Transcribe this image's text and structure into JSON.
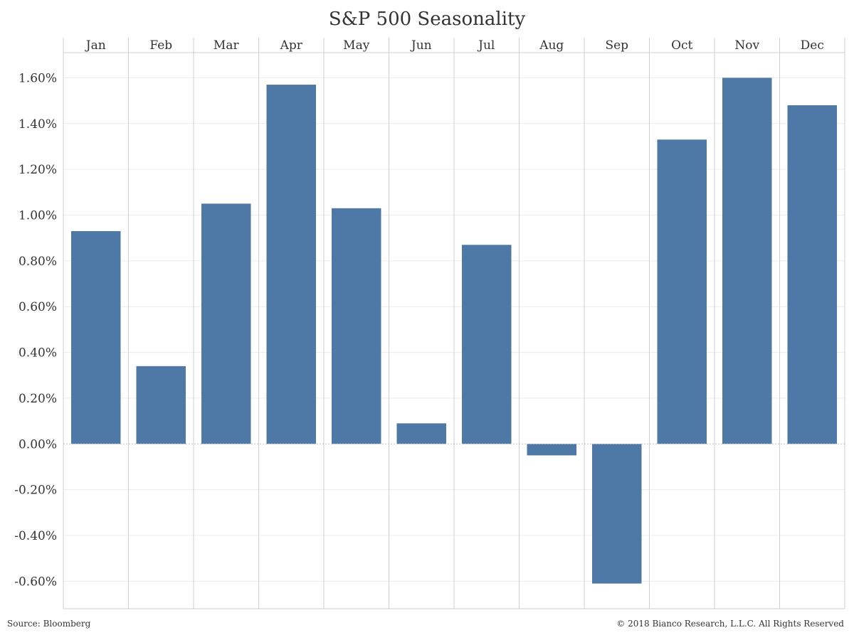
{
  "chart_data": {
    "type": "bar",
    "title": "S&P 500 Seasonality",
    "categories": [
      "Jan",
      "Feb",
      "Mar",
      "Apr",
      "May",
      "Jun",
      "Jul",
      "Aug",
      "Sep",
      "Oct",
      "Nov",
      "Dec"
    ],
    "values": [
      0.93,
      0.34,
      1.05,
      1.57,
      1.03,
      0.09,
      0.87,
      -0.05,
      -0.61,
      1.33,
      1.6,
      1.48
    ],
    "value_unit": "%",
    "ylim": [
      -0.72,
      1.71
    ],
    "yticks": [
      -0.6,
      -0.4,
      -0.2,
      0.0,
      0.2,
      0.4,
      0.6,
      0.8,
      1.0,
      1.2,
      1.4,
      1.6
    ],
    "ytick_labels": [
      "-0.60%",
      "-0.40%",
      "-0.20%",
      "0.00%",
      "0.20%",
      "0.40%",
      "0.60%",
      "0.80%",
      "1.00%",
      "1.20%",
      "1.40%",
      "1.60%"
    ],
    "xlabel": "",
    "ylabel": "",
    "category_label_position": "top",
    "grid": true,
    "bar_color": "#4e79a7"
  },
  "footer": {
    "source": "Source: Bloomberg",
    "copyright": "© 2018 Bianco Research, L.L.C. All Rights Reserved"
  }
}
